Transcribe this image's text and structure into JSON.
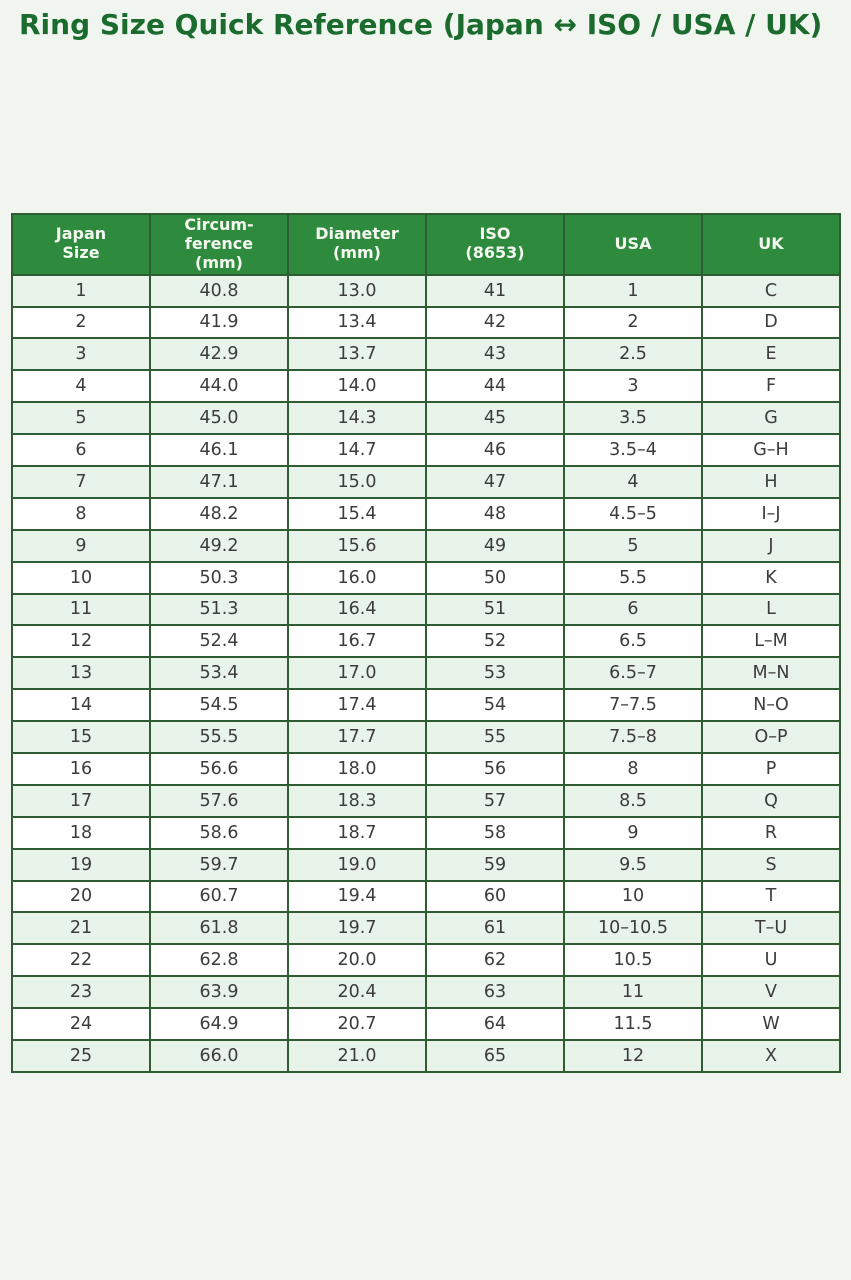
{
  "page": {
    "title": "Ring Size Quick Reference (Japan ↔ ISO / USA / UK)"
  },
  "colors": {
    "page-bg": "#f0f6ef",
    "title-color": "#1a6b2d",
    "header-bg": "#2e8b3d",
    "header-text": "#f4f8f0",
    "row-alt-bg": "#e8f4e9",
    "row-bg": "#fdfefd",
    "border-color": "#2f5c33",
    "cell-text": "#3c3c3c"
  },
  "chart_data": {
    "type": "table",
    "title": "Ring Size Quick Reference (Japan ↔ ISO / USA / UK)",
    "columns": [
      "Japan\nSize",
      "Circum-\nference\n(mm)",
      "Diameter\n(mm)",
      "ISO\n(8653)",
      "USA",
      "UK"
    ],
    "rows": [
      [
        "1",
        "40.8",
        "13.0",
        "41",
        "1",
        "C"
      ],
      [
        "2",
        "41.9",
        "13.4",
        "42",
        "2",
        "D"
      ],
      [
        "3",
        "42.9",
        "13.7",
        "43",
        "2.5",
        "E"
      ],
      [
        "4",
        "44.0",
        "14.0",
        "44",
        "3",
        "F"
      ],
      [
        "5",
        "45.0",
        "14.3",
        "45",
        "3.5",
        "G"
      ],
      [
        "6",
        "46.1",
        "14.7",
        "46",
        "3.5–4",
        "G–H"
      ],
      [
        "7",
        "47.1",
        "15.0",
        "47",
        "4",
        "H"
      ],
      [
        "8",
        "48.2",
        "15.4",
        "48",
        "4.5–5",
        "I–J"
      ],
      [
        "9",
        "49.2",
        "15.6",
        "49",
        "5",
        "J"
      ],
      [
        "10",
        "50.3",
        "16.0",
        "50",
        "5.5",
        "K"
      ],
      [
        "11",
        "51.3",
        "16.4",
        "51",
        "6",
        "L"
      ],
      [
        "12",
        "52.4",
        "16.7",
        "52",
        "6.5",
        "L–M"
      ],
      [
        "13",
        "53.4",
        "17.0",
        "53",
        "6.5–7",
        "M–N"
      ],
      [
        "14",
        "54.5",
        "17.4",
        "54",
        "7–7.5",
        "N–O"
      ],
      [
        "15",
        "55.5",
        "17.7",
        "55",
        "7.5–8",
        "O–P"
      ],
      [
        "16",
        "56.6",
        "18.0",
        "56",
        "8",
        "P"
      ],
      [
        "17",
        "57.6",
        "18.3",
        "57",
        "8.5",
        "Q"
      ],
      [
        "18",
        "58.6",
        "18.7",
        "58",
        "9",
        "R"
      ],
      [
        "19",
        "59.7",
        "19.0",
        "59",
        "9.5",
        "S"
      ],
      [
        "20",
        "60.7",
        "19.4",
        "60",
        "10",
        "T"
      ],
      [
        "21",
        "61.8",
        "19.7",
        "61",
        "10–10.5",
        "T–U"
      ],
      [
        "22",
        "62.8",
        "20.0",
        "62",
        "10.5",
        "U"
      ],
      [
        "23",
        "63.9",
        "20.4",
        "63",
        "11",
        "V"
      ],
      [
        "24",
        "64.9",
        "20.7",
        "64",
        "11.5",
        "W"
      ],
      [
        "25",
        "66.0",
        "21.0",
        "65",
        "12",
        "X"
      ]
    ]
  }
}
